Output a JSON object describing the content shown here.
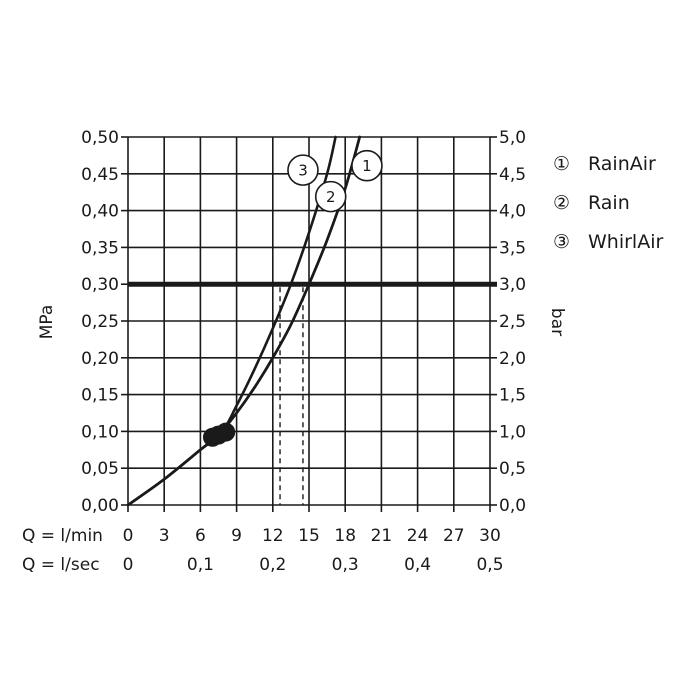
{
  "chart_data": {
    "type": "line",
    "y_left": {
      "label": "MPa",
      "ticks": [
        "0,00",
        "0,05",
        "0,10",
        "0,15",
        "0,20",
        "0,25",
        "0,30",
        "0,35",
        "0,40",
        "0,45",
        "0,50"
      ],
      "range": [
        0,
        0.5
      ]
    },
    "y_right": {
      "label": "bar",
      "ticks": [
        "0,0",
        "0,5",
        "1,0",
        "1,5",
        "2,0",
        "2,5",
        "3,0",
        "3,5",
        "4,0",
        "4,5",
        "5,0"
      ],
      "range": [
        0,
        5
      ]
    },
    "x_lmin": {
      "label": "Q = l/min",
      "ticks": [
        "0",
        "3",
        "6",
        "9",
        "12",
        "15",
        "18",
        "21",
        "24",
        "27",
        "30"
      ],
      "range": [
        0,
        30
      ]
    },
    "x_lsec": {
      "label": "Q = l/sec",
      "ticks": [
        "0",
        "0,1",
        "0,2",
        "0,3",
        "0,4",
        "0,5"
      ]
    },
    "reference_line": {
      "y": 0.3
    },
    "series": [
      {
        "name": "RainAir",
        "marker": "1",
        "x": [
          0,
          3,
          6,
          7.5,
          9,
          10.5,
          12,
          13.5,
          15,
          16.5,
          18,
          19.2
        ],
        "y": [
          0,
          0.035,
          0.075,
          0.095,
          0.125,
          0.16,
          0.2,
          0.245,
          0.3,
          0.36,
          0.43,
          0.5
        ]
      },
      {
        "name": "Rain",
        "marker": "2",
        "x": [
          0,
          3,
          6,
          7.5,
          9,
          10.5,
          12,
          13.5,
          15,
          16.5,
          18,
          19.2
        ],
        "y": [
          0,
          0.035,
          0.075,
          0.095,
          0.125,
          0.16,
          0.2,
          0.245,
          0.3,
          0.36,
          0.43,
          0.5
        ]
      },
      {
        "name": "WhirlAir",
        "marker": "3",
        "x": [
          0,
          3,
          6,
          7.8,
          9,
          10.5,
          12,
          13.5,
          15,
          16.5,
          17.2
        ],
        "y": [
          0,
          0.035,
          0.075,
          0.1,
          0.135,
          0.185,
          0.24,
          0.3,
          0.37,
          0.45,
          0.5
        ]
      }
    ],
    "markers": [
      {
        "label": "3",
        "x": 14.5,
        "y": 0.455
      },
      {
        "label": "1",
        "x": 19.8,
        "y": 0.461
      },
      {
        "label": "2",
        "x": 16.8,
        "y": 0.419
      }
    ],
    "dashed_guides": [
      12.6,
      14.5
    ],
    "dots": [
      {
        "x": 7.0,
        "y": 0.092
      },
      {
        "x": 7.5,
        "y": 0.095
      },
      {
        "x": 8.1,
        "y": 0.099
      }
    ],
    "grid": true,
    "legend_placement": "right",
    "legend": [
      {
        "symbol": "①",
        "name": "RainAir"
      },
      {
        "symbol": "②",
        "name": "Rain"
      },
      {
        "symbol": "③",
        "name": "WhirlAir"
      }
    ]
  }
}
